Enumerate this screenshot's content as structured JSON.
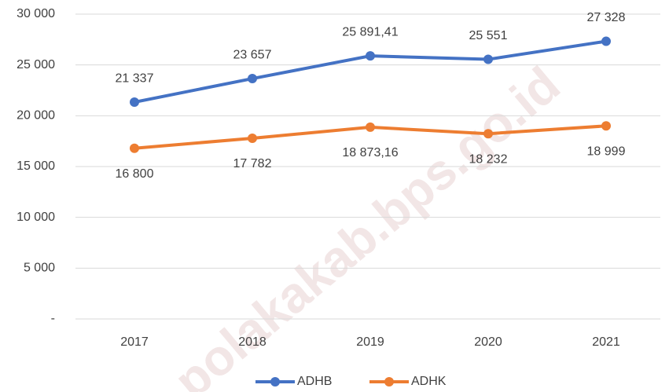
{
  "chart_data": {
    "type": "line",
    "categories": [
      "2017",
      "2018",
      "2019",
      "2020",
      "2021"
    ],
    "series": [
      {
        "name": "ADHB",
        "color": "#4472c4",
        "values": [
          21337,
          23657,
          25891.41,
          25551,
          27328
        ],
        "value_labels": [
          "21 337",
          "23 657",
          "25 891,41",
          "25 551",
          "27 328"
        ]
      },
      {
        "name": "ADHK",
        "color": "#ed7d31",
        "values": [
          16800,
          17782,
          18873.16,
          18232,
          18999
        ],
        "value_labels": [
          "16 800",
          "17 782",
          "18 873,16",
          "18 232",
          "18 999"
        ]
      }
    ],
    "ylim": [
      0,
      30000
    ],
    "yticks": [
      {
        "value": 0,
        "label": "-"
      },
      {
        "value": 5000,
        "label": "5 000"
      },
      {
        "value": 10000,
        "label": "10 000"
      },
      {
        "value": 15000,
        "label": "15 000"
      },
      {
        "value": 20000,
        "label": "20 000"
      },
      {
        "value": 25000,
        "label": "25 000"
      },
      {
        "value": 30000,
        "label": "30 000"
      }
    ],
    "grid": true,
    "legend": "bottom",
    "watermark": "polakakab.bps.go.id"
  }
}
